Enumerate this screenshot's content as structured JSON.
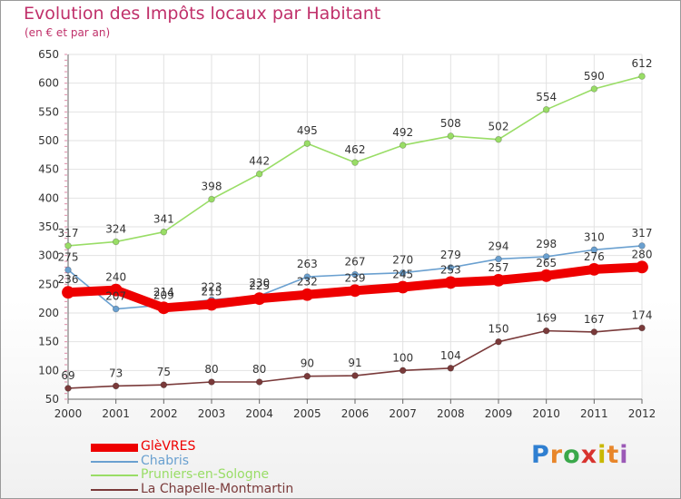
{
  "header": {
    "title": "Evolution des Impôts locaux par Habitant",
    "subtitle": "(en € et par an)"
  },
  "brand": {
    "name": "Proxiti",
    "letters": [
      "P",
      "r",
      "o",
      "x",
      "i",
      "t",
      "i"
    ],
    "colors": [
      "#2f7fd1",
      "#e8862a",
      "#3aa84a",
      "#d8332e",
      "#c9b800",
      "#e8862a",
      "#9b59b6"
    ]
  },
  "chart_data": {
    "type": "line",
    "x": [
      2000,
      2001,
      2002,
      2003,
      2004,
      2005,
      2006,
      2007,
      2008,
      2009,
      2010,
      2011,
      2012
    ],
    "ylim": [
      50,
      650
    ],
    "yticks": [
      50,
      100,
      150,
      200,
      250,
      300,
      350,
      400,
      450,
      500,
      550,
      600,
      650
    ],
    "grid": true,
    "legend_position": "bottom-left",
    "series": [
      {
        "name": "GlèVRES",
        "color": "#ee0000",
        "labelColor": "#333333",
        "values": [
          236,
          240,
          209,
          215,
          225,
          232,
          239,
          245,
          253,
          257,
          265,
          276,
          280
        ]
      },
      {
        "name": "Chabris",
        "color": "#6aa0d0",
        "labelColor": "#333333",
        "values": [
          275,
          207,
          214,
          223,
          230,
          263,
          267,
          270,
          279,
          294,
          298,
          310,
          317
        ]
      },
      {
        "name": "Pruniers-en-Sologne",
        "color": "#99dd66",
        "labelColor": "#333333",
        "values": [
          317,
          324,
          341,
          398,
          442,
          495,
          462,
          492,
          508,
          502,
          554,
          590,
          612
        ]
      },
      {
        "name": "La Chapelle-Montmartin",
        "color": "#7a3a3a",
        "labelColor": "#333333",
        "values": [
          69,
          73,
          75,
          80,
          80,
          90,
          91,
          100,
          104,
          150,
          169,
          167,
          174
        ]
      }
    ]
  }
}
